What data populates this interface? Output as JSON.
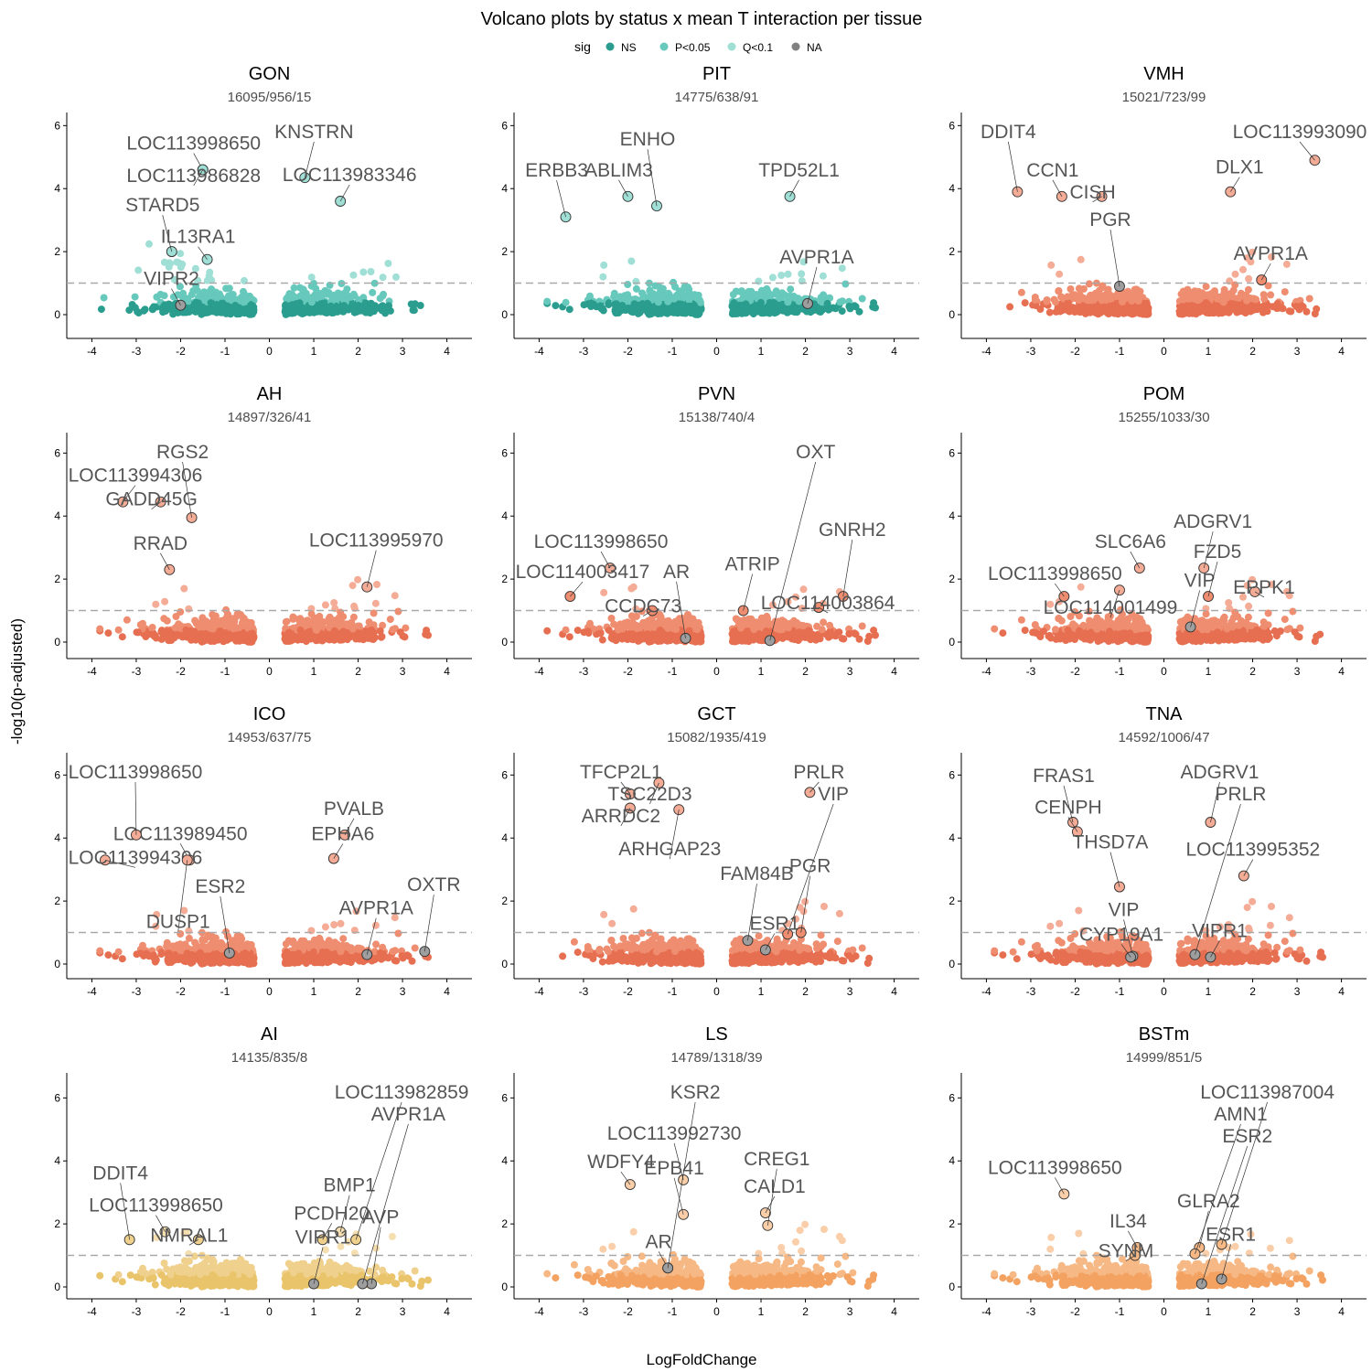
{
  "chart_data": {
    "type": "scatter",
    "title": "Volcano plots by status x mean T interaction per tissue",
    "xlabel": "LogFoldChange",
    "ylabel": "-log10(p-adjusted)",
    "xlim": [
      -4.4,
      4.4
    ],
    "ylim": [
      -0.25,
      6.3
    ],
    "x_ticks": [
      -4,
      -3,
      -2,
      -1,
      0,
      1,
      2,
      3,
      4
    ],
    "y_ticks": [
      0,
      2,
      4,
      6
    ],
    "threshold_line": 1,
    "grid": false,
    "legend": {
      "title": "sig",
      "position": "top",
      "items": [
        {
          "label": "NS",
          "color": "#2a9d8f"
        },
        {
          "label": "P<0.05",
          "color": "#67c8bc"
        },
        {
          "label": "Q<0.1",
          "color": "#9fdfd5"
        },
        {
          "label": "NA",
          "color": "#808080"
        }
      ]
    },
    "panels": [
      {
        "tissue": "GON",
        "subtitle": "16095/956/15",
        "palette": [
          "#2a9d8f",
          "#67c8bc",
          "#9fdfd5"
        ],
        "highlighted": [
          {
            "label": "LOC113998650",
            "x": -1.5,
            "y": 4.6
          },
          {
            "label": "KNSTRN",
            "x": 0.8,
            "y": 4.35
          },
          {
            "label": "LOC113986828",
            "x": -1.5,
            "y": 4.6
          },
          {
            "label": "LOC113983346",
            "x": 1.6,
            "y": 3.6
          },
          {
            "label": "STARD5",
            "x": -2.2,
            "y": 2.0
          },
          {
            "label": "IL13RA1",
            "x": -1.4,
            "y": 1.75
          },
          {
            "label": "VIPR2",
            "x": -2.0,
            "y": 0.3
          }
        ]
      },
      {
        "tissue": "PIT",
        "subtitle": "14775/638/91",
        "palette": [
          "#2a9d8f",
          "#67c8bc",
          "#9fdfd5"
        ],
        "highlighted": [
          {
            "label": "ABLIM3",
            "x": -2.0,
            "y": 3.75
          },
          {
            "label": "ERBB3",
            "x": -3.4,
            "y": 3.1
          },
          {
            "label": "ENHO",
            "x": -1.35,
            "y": 3.45
          },
          {
            "label": "TPD52L1",
            "x": 1.65,
            "y": 3.75
          },
          {
            "label": "AVPR1A",
            "x": 2.05,
            "y": 0.35
          }
        ]
      },
      {
        "tissue": "VMH",
        "subtitle": "15021/723/99",
        "palette": [
          "#e76f51",
          "#ee8d70",
          "#f4ac96"
        ],
        "highlighted": [
          {
            "label": "CCN1",
            "x": -2.3,
            "y": 3.75
          },
          {
            "label": "LOC113993090",
            "x": 3.4,
            "y": 4.9
          },
          {
            "label": "DDIT4",
            "x": -3.3,
            "y": 3.9
          },
          {
            "label": "CISH",
            "x": -1.4,
            "y": 3.75
          },
          {
            "label": "DLX1",
            "x": 1.5,
            "y": 3.9
          },
          {
            "label": "PGR",
            "x": -1.0,
            "y": 0.9
          },
          {
            "label": "AVPR1A",
            "x": 2.2,
            "y": 1.1
          }
        ]
      },
      {
        "tissue": "AH",
        "subtitle": "14897/326/41",
        "palette": [
          "#e76f51",
          "#ee8d70",
          "#f4ac96"
        ],
        "highlighted": [
          {
            "label": "LOC113994306",
            "x": -3.3,
            "y": 4.45
          },
          {
            "label": "GADD45G",
            "x": -2.45,
            "y": 4.45
          },
          {
            "label": "RGS2",
            "x": -1.75,
            "y": 3.95
          },
          {
            "label": "RRAD",
            "x": -2.25,
            "y": 2.3
          },
          {
            "label": "LOC113995970",
            "x": 2.2,
            "y": 1.75
          }
        ]
      },
      {
        "tissue": "PVN",
        "subtitle": "15138/740/4",
        "palette": [
          "#e76f51",
          "#ee8d70",
          "#f4ac96"
        ],
        "highlighted": [
          {
            "label": "LOC113998650",
            "x": -2.4,
            "y": 2.35
          },
          {
            "label": "LOC114003417",
            "x": -3.3,
            "y": 1.45
          },
          {
            "label": "AR",
            "x": -0.7,
            "y": 0.12
          },
          {
            "label": "CCDC73",
            "x": -1.45,
            "y": 1.0
          },
          {
            "label": "ATRIP",
            "x": 0.6,
            "y": 1.0
          },
          {
            "label": "GNRH2",
            "x": 2.85,
            "y": 1.45
          },
          {
            "label": "LOC114003864",
            "x": 2.3,
            "y": 1.1
          },
          {
            "label": "OXT",
            "x": 1.2,
            "y": 0.05
          }
        ]
      },
      {
        "tissue": "POM",
        "subtitle": "15255/1033/30",
        "palette": [
          "#e76f51",
          "#ee8d70",
          "#f4ac96"
        ],
        "highlighted": [
          {
            "label": "SLC6A6",
            "x": -0.55,
            "y": 2.35
          },
          {
            "label": "ADGRV1",
            "x": 0.9,
            "y": 2.35
          },
          {
            "label": "LOC113998650",
            "x": -2.25,
            "y": 1.45
          },
          {
            "label": "LOC114001499",
            "x": -1.0,
            "y": 1.65
          },
          {
            "label": "VIP",
            "x": 0.6,
            "y": 0.48
          },
          {
            "label": "FZD5",
            "x": 1.0,
            "y": 1.45
          },
          {
            "label": "EPPK1",
            "x": 2.05,
            "y": 1.6
          }
        ]
      },
      {
        "tissue": "ICO",
        "subtitle": "14953/637/75",
        "palette": [
          "#e76f51",
          "#ee8d70",
          "#f4ac96"
        ],
        "highlighted": [
          {
            "label": "LOC113989450",
            "x": -1.8,
            "y": 3.3
          },
          {
            "label": "AVPR1A",
            "x": 2.2,
            "y": 0.3
          },
          {
            "label": "LOC113998650",
            "x": -3.0,
            "y": 4.1
          },
          {
            "label": "PVALB",
            "x": 1.7,
            "y": 4.1
          },
          {
            "label": "LOC113994306",
            "x": -3.7,
            "y": 3.3
          },
          {
            "label": "ESR2",
            "x": -0.9,
            "y": 0.35
          },
          {
            "label": "DUSP1",
            "x": -1.85,
            "y": 3.3
          },
          {
            "label": "EPHA6",
            "x": 1.45,
            "y": 3.35
          },
          {
            "label": "OXTR",
            "x": 3.5,
            "y": 0.4
          }
        ]
      },
      {
        "tissue": "GCT",
        "subtitle": "15082/1935/419",
        "palette": [
          "#e76f51",
          "#ee8d70",
          "#f4ac96"
        ],
        "highlighted": [
          {
            "label": "TFCP2L1",
            "x": -1.95,
            "y": 5.4
          },
          {
            "label": "TSC22D3",
            "x": -1.3,
            "y": 5.75
          },
          {
            "label": "PRLR",
            "x": 2.1,
            "y": 5.45
          },
          {
            "label": "ESR1",
            "x": 1.1,
            "y": 0.45
          },
          {
            "label": "ARRDC2",
            "x": -1.95,
            "y": 4.95
          },
          {
            "label": "FAM84B",
            "x": 0.7,
            "y": 0.75
          },
          {
            "label": "ARHGAP23",
            "x": -0.85,
            "y": 4.9
          },
          {
            "label": "VIP",
            "x": 1.6,
            "y": 0.95
          },
          {
            "label": "PGR",
            "x": 1.9,
            "y": 1.0
          }
        ]
      },
      {
        "tissue": "TNA",
        "subtitle": "14592/1006/47",
        "palette": [
          "#e76f51",
          "#ee8d70",
          "#f4ac96"
        ],
        "highlighted": [
          {
            "label": "LOC113995352",
            "x": 1.8,
            "y": 2.8
          },
          {
            "label": "FRAS1",
            "x": -2.05,
            "y": 4.5
          },
          {
            "label": "ADGRV1",
            "x": 1.05,
            "y": 4.5
          },
          {
            "label": "VIPR1",
            "x": 1.05,
            "y": 0.22
          },
          {
            "label": "CENPH",
            "x": -1.95,
            "y": 4.2
          },
          {
            "label": "THSD7A",
            "x": -1.0,
            "y": 2.45
          },
          {
            "label": "PRLR",
            "x": 0.7,
            "y": 0.3
          },
          {
            "label": "VIP",
            "x": -0.7,
            "y": 0.25
          },
          {
            "label": "CYP19A1",
            "x": -0.75,
            "y": 0.22
          }
        ]
      },
      {
        "tissue": "AI",
        "subtitle": "14135/835/8",
        "palette": [
          "#e9c46a",
          "#efd08d",
          "#f5deb0"
        ],
        "highlighted": [
          {
            "label": "LOC113998650",
            "x": -2.35,
            "y": 1.75
          },
          {
            "label": "BMP1",
            "x": 1.6,
            "y": 1.75
          },
          {
            "label": "AVP",
            "x": 2.3,
            "y": 0.1
          },
          {
            "label": "PCDH20",
            "x": 1.2,
            "y": 1.5
          },
          {
            "label": "LOC113982859",
            "x": 1.95,
            "y": 1.5
          },
          {
            "label": "DDIT4",
            "x": -3.15,
            "y": 1.5
          },
          {
            "label": "NMRAL1",
            "x": -1.6,
            "y": 1.5
          },
          {
            "label": "VIPR1",
            "x": 1.0,
            "y": 0.1
          },
          {
            "label": "AVPR1A",
            "x": 2.1,
            "y": 0.1
          }
        ]
      },
      {
        "tissue": "LS",
        "subtitle": "14789/1318/39",
        "palette": [
          "#f4a261",
          "#f6b884",
          "#f9cea8"
        ],
        "highlighted": [
          {
            "label": "AR",
            "x": -1.1,
            "y": 0.6
          },
          {
            "label": "LOC113992730",
            "x": -0.75,
            "y": 3.4
          },
          {
            "label": "WDFY4",
            "x": -1.95,
            "y": 3.25
          },
          {
            "label": "CALD1",
            "x": 1.1,
            "y": 2.35
          },
          {
            "label": "EPB41",
            "x": -0.75,
            "y": 2.3
          },
          {
            "label": "CREG1",
            "x": 1.15,
            "y": 1.95
          },
          {
            "label": "KSR2",
            "x": -1.1,
            "y": 0.6
          }
        ]
      },
      {
        "tissue": "BSTm",
        "subtitle": "14999/851/5",
        "palette": [
          "#f4a261",
          "#f6b884",
          "#f9cea8"
        ],
        "highlighted": [
          {
            "label": "LOC113998650",
            "x": -2.25,
            "y": 2.95
          },
          {
            "label": "GLRA2",
            "x": 0.8,
            "y": 1.25
          },
          {
            "label": "ESR1",
            "x": 1.3,
            "y": 0.25
          },
          {
            "label": "IL34",
            "x": -0.6,
            "y": 1.25
          },
          {
            "label": "LOC113987004",
            "x": 1.3,
            "y": 1.35
          },
          {
            "label": "AMN1",
            "x": 0.7,
            "y": 1.05
          },
          {
            "label": "SYNM",
            "x": -0.65,
            "y": 1.0
          },
          {
            "label": "ESR2",
            "x": 0.85,
            "y": 0.1
          }
        ]
      }
    ]
  }
}
